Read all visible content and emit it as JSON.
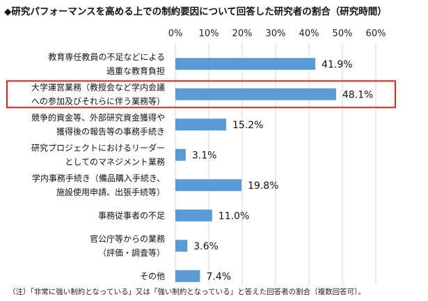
{
  "chart_data": {
    "type": "bar",
    "orientation": "horizontal",
    "title": "◆研究パフォーマンスを高める上での制約要因について回答した研究者の割合（研究時間）",
    "categories": [
      [
        "教育専任教員の不足などによる",
        "過重な教育負担"
      ],
      [
        "大学運営業務（教授会など学内会議",
        "への参加及びそれらに伴う業務等）"
      ],
      [
        "競争的資金等、外部研究資金獲得や",
        "獲得後の報告等の事務手続き"
      ],
      [
        "研究プロジェクトにおけるリーダー",
        "としてのマネジメント業務"
      ],
      [
        "学内事務手続き（備品購入手続き、",
        "施設使用申請、出張手続等）"
      ],
      [
        "事務従事者の不足"
      ],
      [
        "官公庁等からの業務",
        "（評価・調査等）"
      ],
      [
        "その他"
      ]
    ],
    "values": [
      41.9,
      48.1,
      15.2,
      3.1,
      19.8,
      11.0,
      3.6,
      7.4
    ],
    "value_labels": [
      "41.9%",
      "48.1%",
      "15.2%",
      "3.1%",
      "19.8%",
      "11.0%",
      "3.6%",
      "7.4%"
    ],
    "xlim": [
      0,
      60
    ],
    "xticks": [
      "0%",
      "10%",
      "20%",
      "30%",
      "40%",
      "50%",
      "60%"
    ],
    "highlighted_index": 1,
    "grid": true,
    "bar_color": "#5b9bd5",
    "highlight_color": "#e8211c",
    "note": "（注）「非常に強い制約となっている」又は「強い制約となっている」と答えた回答者の割合（複数回答可）。"
  }
}
